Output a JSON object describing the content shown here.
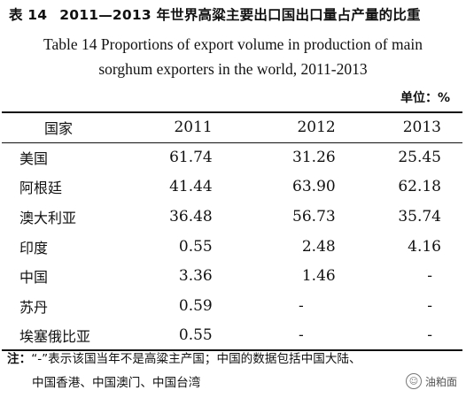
{
  "title_cn": {
    "number": "表 14",
    "text": "2011—2013 年世界高粱主要出口国出口量占产量的比重"
  },
  "title_en": {
    "line1": "Table 14  Proportions of export volume in production of main",
    "line2": "sorghum exporters in the world, 2011-2013"
  },
  "unit": "单位：%",
  "table": {
    "headers": [
      "国家",
      "2011",
      "2012",
      "2013"
    ],
    "rows": [
      [
        "美国",
        "61.74",
        "31.26",
        "25.45"
      ],
      [
        "阿根廷",
        "41.44",
        "63.90",
        "62.18"
      ],
      [
        "澳大利亚",
        "36.48",
        "56.73",
        "35.74"
      ],
      [
        "印度",
        "0.55",
        "2.48",
        "4.16"
      ],
      [
        "中国",
        "3.36",
        "1.46",
        "-"
      ],
      [
        "苏丹",
        "0.59",
        "-",
        "-"
      ],
      [
        "埃塞俄比亚",
        "0.55",
        "-",
        "-"
      ]
    ]
  },
  "note": {
    "label": "注：",
    "line1": "“-”表示该国当年不是高粱主产国；中国的数据包括中国大陆、",
    "line2": "中国香港、中国澳门、中国台湾"
  },
  "watermark": {
    "icon": "wechat-icon",
    "text": "油粕面"
  }
}
